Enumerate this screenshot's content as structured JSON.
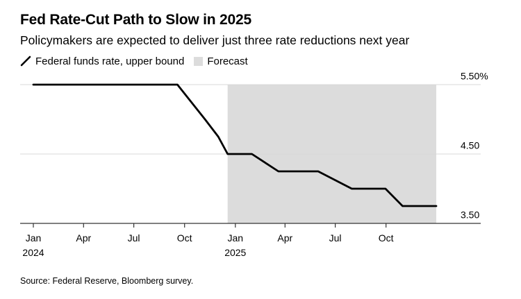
{
  "title": "Fed Rate-Cut Path to Slow in 2025",
  "subtitle": "Policymakers are expected to deliver just three rate reductions next year",
  "legend": {
    "line_label": "Federal funds rate, upper bound",
    "forecast_label": "Forecast"
  },
  "source": "Source: Federal Reserve, Bloomberg survey.",
  "colors": {
    "line": "#000000",
    "forecast_band": "#dcdcdc",
    "gridline": "#d9d9d9",
    "axis": "#333333"
  },
  "chart_data": {
    "type": "line",
    "title": "Fed Rate-Cut Path to Slow in 2025",
    "subtitle": "Policymakers are expected to deliver just three rate reductions next year",
    "xlabel": "",
    "ylabel": "",
    "x_range": [
      "2024-01-01",
      "2025-12-31"
    ],
    "ylim": [
      3.5,
      5.5
    ],
    "y_ticks": [
      {
        "value": 5.5,
        "label": "5.50%"
      },
      {
        "value": 4.5,
        "label": "4.50"
      },
      {
        "value": 3.5,
        "label": "3.50"
      }
    ],
    "x_ticks": [
      {
        "date": "2024-01-01",
        "label": "Jan",
        "year_label": "2024"
      },
      {
        "date": "2024-04-01",
        "label": "Apr",
        "year_label": ""
      },
      {
        "date": "2024-07-01",
        "label": "Jul",
        "year_label": ""
      },
      {
        "date": "2024-10-01",
        "label": "Oct",
        "year_label": ""
      },
      {
        "date": "2025-01-01",
        "label": "Jan",
        "year_label": "2025"
      },
      {
        "date": "2025-04-01",
        "label": "Apr",
        "year_label": ""
      },
      {
        "date": "2025-07-01",
        "label": "Jul",
        "year_label": ""
      },
      {
        "date": "2025-10-01",
        "label": "Oct",
        "year_label": ""
      }
    ],
    "grid": true,
    "legend_position": "top-left",
    "forecast_band": {
      "start": "2024-12-18",
      "end": "2025-12-31"
    },
    "series": [
      {
        "name": "Federal funds rate, upper bound",
        "points": [
          {
            "x": "2024-01-01",
            "y": 5.5
          },
          {
            "x": "2024-09-18",
            "y": 5.5
          },
          {
            "x": "2024-11-07",
            "y": 5.0
          },
          {
            "x": "2024-12-01",
            "y": 4.75
          },
          {
            "x": "2024-12-18",
            "y": 4.5
          },
          {
            "x": "2025-01-31",
            "y": 4.5
          },
          {
            "x": "2025-03-20",
            "y": 4.25
          },
          {
            "x": "2025-05-31",
            "y": 4.25
          },
          {
            "x": "2025-07-31",
            "y": 4.0
          },
          {
            "x": "2025-09-30",
            "y": 4.0
          },
          {
            "x": "2025-10-31",
            "y": 3.75
          },
          {
            "x": "2025-12-31",
            "y": 3.75
          }
        ]
      }
    ]
  }
}
